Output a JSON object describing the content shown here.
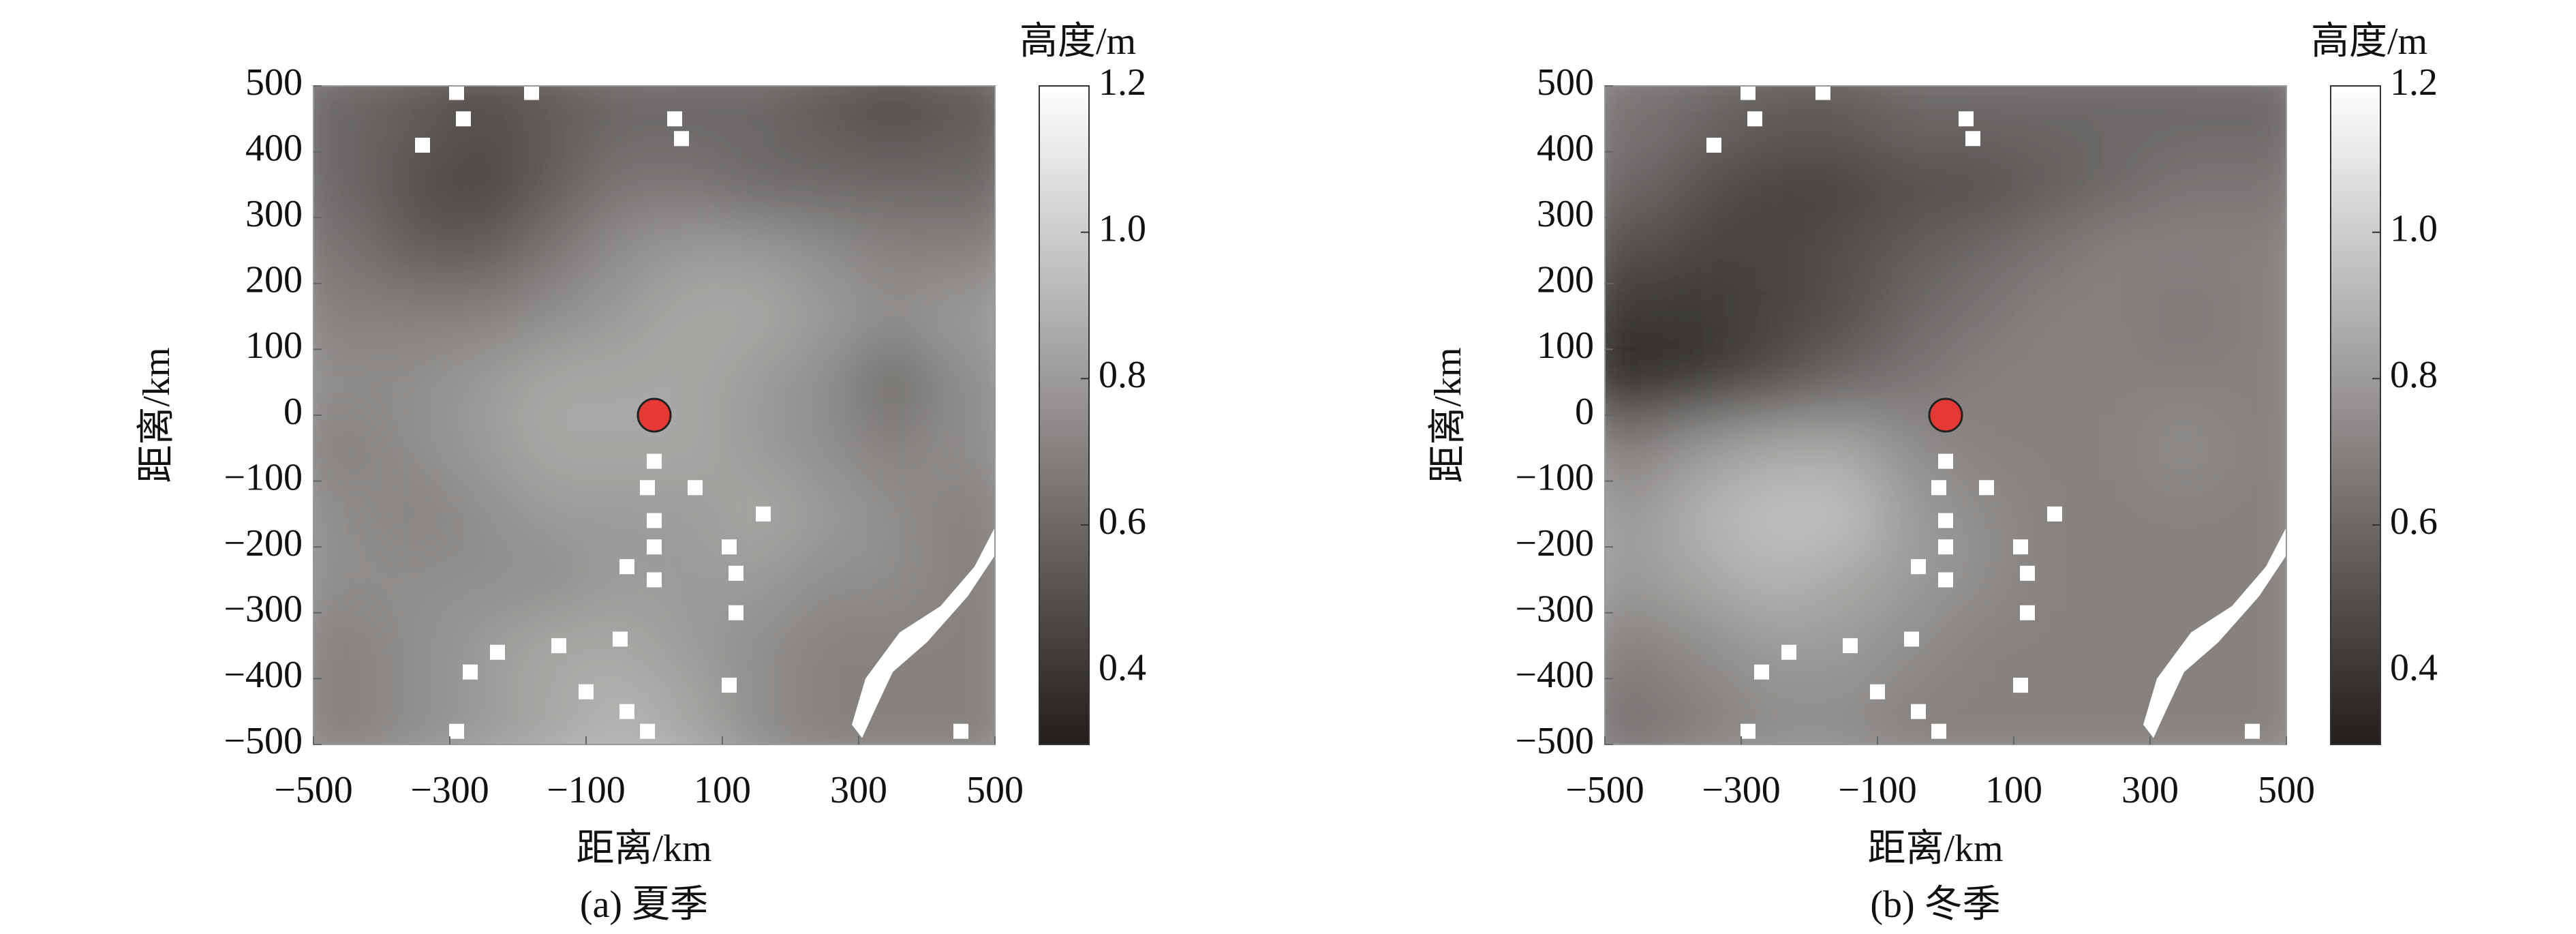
{
  "chart_data": [
    {
      "type": "heatmap",
      "caption": "(a) 夏季",
      "xlabel": "距离/km",
      "ylabel": "距离/km",
      "colorbar_label": "高度/m",
      "x": [
        -450,
        -350,
        -250,
        -150,
        -50,
        50,
        150,
        250,
        350,
        450
      ],
      "y": [
        450,
        350,
        250,
        150,
        50,
        -50,
        -150,
        -250,
        -350,
        -450
      ],
      "values": [
        [
          0.6,
          0.55,
          0.5,
          0.55,
          0.6,
          0.6,
          0.6,
          0.55,
          0.5,
          0.55
        ],
        [
          0.6,
          0.5,
          0.45,
          0.55,
          0.65,
          0.65,
          0.6,
          0.6,
          0.6,
          0.6
        ],
        [
          0.65,
          0.55,
          0.55,
          0.65,
          0.75,
          0.8,
          0.8,
          0.75,
          0.7,
          0.7
        ],
        [
          0.7,
          0.7,
          0.7,
          0.75,
          0.8,
          0.85,
          0.85,
          0.8,
          0.75,
          0.8
        ],
        [
          0.75,
          0.75,
          0.8,
          0.85,
          0.85,
          0.85,
          0.8,
          0.75,
          0.6,
          0.75
        ],
        [
          0.7,
          0.75,
          0.8,
          0.85,
          0.85,
          0.85,
          0.8,
          0.75,
          0.7,
          0.75
        ],
        [
          0.75,
          0.7,
          0.75,
          0.8,
          0.8,
          0.8,
          0.85,
          0.8,
          0.75,
          0.7
        ],
        [
          0.75,
          0.75,
          0.75,
          0.75,
          0.8,
          0.8,
          0.8,
          0.75,
          0.75,
          0.7
        ],
        [
          0.7,
          0.75,
          0.8,
          0.85,
          0.85,
          0.8,
          0.75,
          0.7,
          0.7,
          0.7
        ],
        [
          0.7,
          0.75,
          0.8,
          0.85,
          0.9,
          0.85,
          0.75,
          0.7,
          0.7,
          0.7
        ]
      ],
      "marker": {
        "x": 0,
        "y": 0,
        "color": "#e53935"
      },
      "xlim": [
        -500,
        500
      ],
      "ylim": [
        -500,
        500
      ],
      "xticks": [
        {
          "value": -500,
          "label": "−500"
        },
        {
          "value": -300,
          "label": "−300"
        },
        {
          "value": -100,
          "label": "−100"
        },
        100,
        300,
        500
      ],
      "yticks": [
        500,
        400,
        300,
        200,
        100,
        0,
        {
          "value": -100,
          "label": "−100"
        },
        {
          "value": -200,
          "label": "−200"
        },
        {
          "value": -300,
          "label": "−300"
        },
        {
          "value": -400,
          "label": "−400"
        },
        {
          "value": -500,
          "label": "−500"
        }
      ],
      "zlim": [
        0.3,
        1.2
      ],
      "zticks": [
        1.2,
        {
          "value": 1,
          "label": "1.0"
        },
        0.8,
        0.6,
        0.4
      ],
      "colormap": [
        "#231e1b",
        "#ffffff"
      ]
    },
    {
      "type": "heatmap",
      "caption": "(b) 冬季",
      "xlabel": "距离/km",
      "ylabel": "距离/km",
      "colorbar_label": "高度/m",
      "x": [
        -450,
        -350,
        -250,
        -150,
        -50,
        50,
        150,
        250,
        350,
        450
      ],
      "y": [
        450,
        350,
        250,
        150,
        50,
        -50,
        -150,
        -250,
        -350,
        -450
      ],
      "values": [
        [
          0.65,
          0.6,
          0.55,
          0.55,
          0.6,
          0.6,
          0.6,
          0.6,
          0.6,
          0.6
        ],
        [
          0.6,
          0.5,
          0.45,
          0.45,
          0.5,
          0.5,
          0.55,
          0.6,
          0.65,
          0.65
        ],
        [
          0.5,
          0.45,
          0.45,
          0.5,
          0.55,
          0.6,
          0.65,
          0.7,
          0.7,
          0.7
        ],
        [
          0.4,
          0.4,
          0.45,
          0.5,
          0.6,
          0.65,
          0.7,
          0.7,
          0.65,
          0.7
        ],
        [
          0.35,
          0.4,
          0.5,
          0.6,
          0.65,
          0.7,
          0.7,
          0.7,
          0.7,
          0.7
        ],
        [
          0.7,
          0.8,
          0.85,
          0.85,
          0.75,
          0.7,
          0.7,
          0.7,
          0.75,
          0.7
        ],
        [
          0.8,
          0.9,
          0.95,
          0.95,
          0.8,
          0.75,
          0.7,
          0.7,
          0.7,
          0.7
        ],
        [
          0.8,
          0.85,
          0.9,
          0.85,
          0.8,
          0.75,
          0.7,
          0.7,
          0.7,
          0.7
        ],
        [
          0.7,
          0.75,
          0.8,
          0.8,
          0.75,
          0.7,
          0.7,
          0.7,
          0.7,
          0.7
        ],
        [
          0.65,
          0.7,
          0.75,
          0.75,
          0.7,
          0.7,
          0.7,
          0.7,
          0.7,
          0.7
        ]
      ],
      "marker": {
        "x": 0,
        "y": 0,
        "color": "#e53935"
      },
      "xlim": [
        -500,
        500
      ],
      "ylim": [
        -500,
        500
      ],
      "xticks": [
        {
          "value": -500,
          "label": "−500"
        },
        {
          "value": -300,
          "label": "−300"
        },
        {
          "value": -100,
          "label": "−100"
        },
        100,
        300,
        500
      ],
      "yticks": [
        500,
        400,
        300,
        200,
        100,
        0,
        {
          "value": -100,
          "label": "−100"
        },
        {
          "value": -200,
          "label": "−200"
        },
        {
          "value": -300,
          "label": "−300"
        },
        {
          "value": -400,
          "label": "−400"
        },
        {
          "value": -500,
          "label": "−500"
        }
      ],
      "zlim": [
        0.3,
        1.2
      ],
      "zticks": [
        1.2,
        {
          "value": 1,
          "label": "1.0"
        },
        0.8,
        0.6,
        0.4
      ],
      "colormap": [
        "#231e1b",
        "#ffffff"
      ]
    }
  ]
}
